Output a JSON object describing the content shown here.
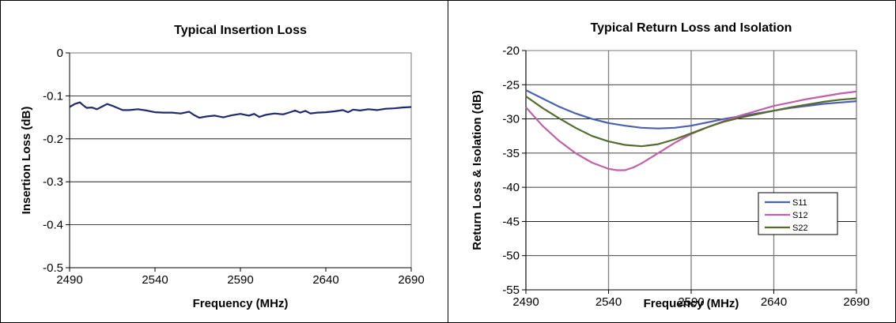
{
  "chart_data": [
    {
      "type": "line",
      "title": "Typical Insertion Loss",
      "xlabel": "Frequency (MHz)",
      "ylabel": "Insertion Loss (dB)",
      "xlim": [
        2490,
        2690
      ],
      "ylim": [
        -0.5,
        0
      ],
      "xticks": [
        2490,
        2540,
        2590,
        2640,
        2690
      ],
      "yticks": [
        0,
        -0.1,
        -0.2,
        -0.3,
        -0.4,
        -0.5
      ],
      "ytick_labels": [
        "0",
        "-0.1",
        "-0.2",
        "-0.3",
        "-0.4",
        "-0.5"
      ],
      "grid": "horizontal",
      "series": [
        {
          "color": "#1f2a6e",
          "x": [
            2490,
            2493,
            2496,
            2498,
            2500,
            2503,
            2506,
            2509,
            2512,
            2515,
            2518,
            2521,
            2525,
            2530,
            2535,
            2540,
            2545,
            2550,
            2555,
            2560,
            2563,
            2566,
            2570,
            2575,
            2580,
            2585,
            2590,
            2595,
            2598,
            2601,
            2605,
            2610,
            2615,
            2620,
            2622,
            2625,
            2628,
            2631,
            2635,
            2640,
            2645,
            2650,
            2653,
            2656,
            2660,
            2665,
            2670,
            2675,
            2680,
            2685,
            2690
          ],
          "values": [
            -0.126,
            -0.119,
            -0.115,
            -0.122,
            -0.128,
            -0.127,
            -0.131,
            -0.125,
            -0.119,
            -0.123,
            -0.128,
            -0.133,
            -0.133,
            -0.131,
            -0.134,
            -0.138,
            -0.139,
            -0.139,
            -0.141,
            -0.137,
            -0.145,
            -0.151,
            -0.148,
            -0.146,
            -0.15,
            -0.145,
            -0.142,
            -0.146,
            -0.142,
            -0.149,
            -0.144,
            -0.141,
            -0.143,
            -0.137,
            -0.134,
            -0.139,
            -0.135,
            -0.141,
            -0.139,
            -0.138,
            -0.136,
            -0.133,
            -0.138,
            -0.132,
            -0.134,
            -0.131,
            -0.133,
            -0.13,
            -0.129,
            -0.127,
            -0.126
          ]
        }
      ]
    },
    {
      "type": "line",
      "title": "Typical Return Loss and Isolation",
      "xlabel": "Frequency (MHz)",
      "ylabel": "Return Loss & Isolation (dB)",
      "xlim": [
        2490,
        2690
      ],
      "ylim": [
        -55,
        -20
      ],
      "xticks": [
        2490,
        2540,
        2590,
        2640,
        2690
      ],
      "yticks": [
        -20,
        -25,
        -30,
        -35,
        -40,
        -45,
        -50,
        -55
      ],
      "grid": "both",
      "legend": "bottom-right",
      "series": [
        {
          "name": "S11",
          "color": "#4a60b0",
          "x": [
            2490,
            2500,
            2510,
            2520,
            2530,
            2540,
            2550,
            2560,
            2570,
            2580,
            2590,
            2600,
            2610,
            2620,
            2630,
            2640,
            2650,
            2660,
            2670,
            2680,
            2690
          ],
          "values": [
            -25.8,
            -27.0,
            -28.2,
            -29.2,
            -30.0,
            -30.6,
            -31.0,
            -31.3,
            -31.4,
            -31.3,
            -31.0,
            -30.5,
            -30.0,
            -29.6,
            -29.2,
            -28.8,
            -28.4,
            -28.1,
            -27.8,
            -27.6,
            -27.4
          ]
        },
        {
          "name": "S12",
          "color": "#c060a8",
          "x": [
            2490,
            2500,
            2510,
            2520,
            2530,
            2540,
            2545,
            2550,
            2555,
            2560,
            2570,
            2580,
            2590,
            2600,
            2610,
            2620,
            2630,
            2640,
            2650,
            2660,
            2670,
            2680,
            2690
          ],
          "values": [
            -28.3,
            -31.0,
            -33.2,
            -35.0,
            -36.4,
            -37.3,
            -37.5,
            -37.5,
            -37.1,
            -36.5,
            -35.0,
            -33.5,
            -32.2,
            -31.2,
            -30.3,
            -29.5,
            -28.8,
            -28.1,
            -27.6,
            -27.1,
            -26.7,
            -26.3,
            -26.0
          ]
        },
        {
          "name": "S22",
          "color": "#566b2e",
          "x": [
            2490,
            2500,
            2510,
            2520,
            2530,
            2540,
            2550,
            2560,
            2570,
            2580,
            2590,
            2600,
            2610,
            2620,
            2630,
            2640,
            2650,
            2660,
            2670,
            2680,
            2690
          ],
          "values": [
            -26.7,
            -28.4,
            -29.9,
            -31.3,
            -32.5,
            -33.3,
            -33.8,
            -34.0,
            -33.7,
            -33.0,
            -32.1,
            -31.2,
            -30.4,
            -29.8,
            -29.3,
            -28.8,
            -28.3,
            -27.9,
            -27.5,
            -27.2,
            -27.0
          ]
        }
      ]
    }
  ]
}
